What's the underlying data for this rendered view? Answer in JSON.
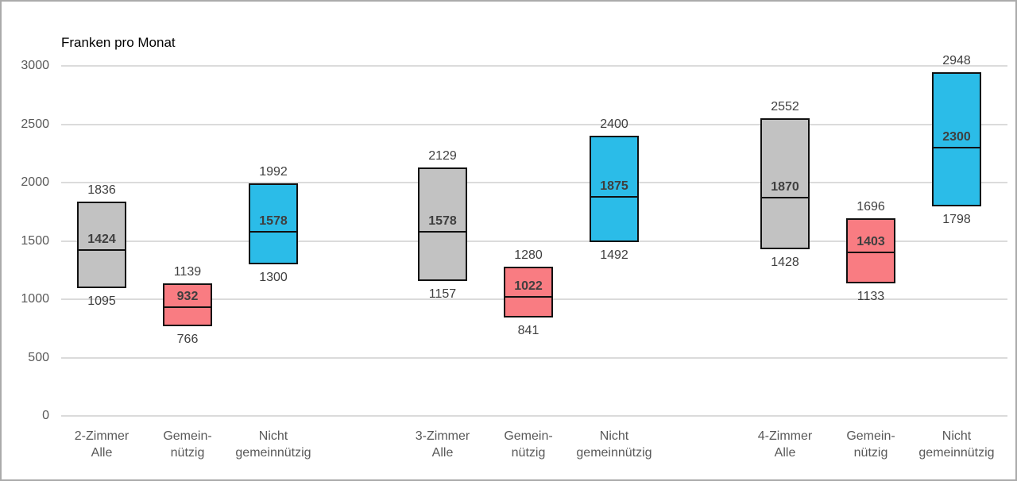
{
  "chart_data": {
    "type": "bar",
    "variant": "floating-range-bars-with-median",
    "title": "Franken pro Monat",
    "xlabel": "",
    "ylabel": "Franken pro Monat",
    "ylim": [
      0,
      3000
    ],
    "yticks": [
      0,
      500,
      1000,
      1500,
      2000,
      2500,
      3000
    ],
    "grid": true,
    "legend": "none",
    "groups": [
      "2-Zimmer",
      "3-Zimmer",
      "4-Zimmer"
    ],
    "bars": [
      {
        "group": "2-Zimmer",
        "category": "Alle",
        "label_lines": [
          "2-Zimmer",
          "Alle"
        ],
        "min": 1095,
        "median": 1424,
        "max": 1836,
        "color_key": "alle"
      },
      {
        "group": "2-Zimmer",
        "category": "Gemeinnützig",
        "label_lines": [
          "Gemein-",
          "nützig"
        ],
        "min": 766,
        "median": 932,
        "max": 1139,
        "color_key": "gemeinnuetzig"
      },
      {
        "group": "2-Zimmer",
        "category": "Nicht gemeinnützig",
        "label_lines": [
          "Nicht",
          "gemeinnützig"
        ],
        "min": 1300,
        "median": 1578,
        "max": 1992,
        "color_key": "nicht_gemeinnuetzig"
      },
      {
        "group": "3-Zimmer",
        "category": "Alle",
        "label_lines": [
          "3-Zimmer",
          "Alle"
        ],
        "min": 1157,
        "median": 1578,
        "max": 2129,
        "color_key": "alle"
      },
      {
        "group": "3-Zimmer",
        "category": "Gemeinnützig",
        "label_lines": [
          "Gemein-",
          "nützig"
        ],
        "min": 841,
        "median": 1022,
        "max": 1280,
        "color_key": "gemeinnuetzig"
      },
      {
        "group": "3-Zimmer",
        "category": "Nicht gemeinnützig",
        "label_lines": [
          "Nicht",
          "gemeinnützig"
        ],
        "min": 1492,
        "median": 1875,
        "max": 2400,
        "color_key": "nicht_gemeinnuetzig"
      },
      {
        "group": "4-Zimmer",
        "category": "Alle",
        "label_lines": [
          "4-Zimmer",
          "Alle"
        ],
        "min": 1428,
        "median": 1870,
        "max": 2552,
        "color_key": "alle"
      },
      {
        "group": "4-Zimmer",
        "category": "Gemeinnützig",
        "label_lines": [
          "Gemein-",
          "nützig"
        ],
        "min": 1133,
        "median": 1403,
        "max": 1696,
        "color_key": "gemeinnuetzig"
      },
      {
        "group": "4-Zimmer",
        "category": "Nicht gemeinnützig",
        "label_lines": [
          "Nicht",
          "gemeinnützig"
        ],
        "min": 1798,
        "median": 2300,
        "max": 2948,
        "color_key": "nicht_gemeinnuetzig"
      }
    ],
    "colors": {
      "alle": "#c2c2c2",
      "gemeinnuetzig": "#f97c82",
      "nicht_gemeinnuetzig": "#2bbce8",
      "bar_border": "#111111",
      "gridline": "#dbdbdb",
      "tick_text": "#595959",
      "axis_label_text": "#595959",
      "value_text": "#3f3f3f",
      "title_text": "#000000",
      "frame_border": "#ababab"
    }
  }
}
